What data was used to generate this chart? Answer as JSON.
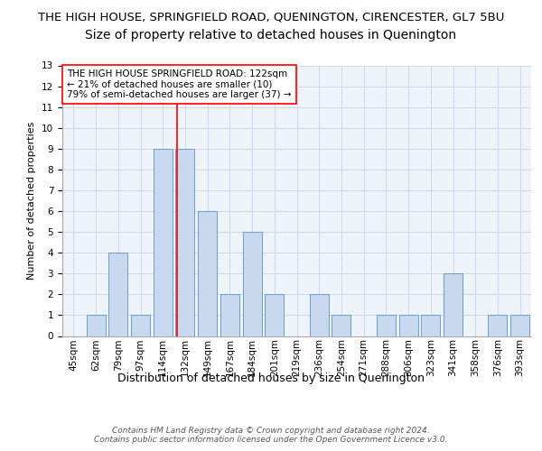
{
  "title": "THE HIGH HOUSE, SPRINGFIELD ROAD, QUENINGTON, CIRENCESTER, GL7 5BU",
  "subtitle": "Size of property relative to detached houses in Quenington",
  "xlabel": "Distribution of detached houses by size in Quenington",
  "ylabel": "Number of detached properties",
  "categories": [
    "45sqm",
    "62sqm",
    "79sqm",
    "97sqm",
    "114sqm",
    "132sqm",
    "149sqm",
    "167sqm",
    "184sqm",
    "201sqm",
    "219sqm",
    "236sqm",
    "254sqm",
    "271sqm",
    "288sqm",
    "306sqm",
    "323sqm",
    "341sqm",
    "358sqm",
    "376sqm",
    "393sqm"
  ],
  "values": [
    0,
    1,
    4,
    1,
    9,
    9,
    6,
    2,
    5,
    2,
    0,
    2,
    1,
    0,
    1,
    1,
    1,
    3,
    0,
    1,
    1
  ],
  "bar_color": "#c8d9ef",
  "bar_edge_color": "#6b9dc8",
  "ylim": [
    0,
    13
  ],
  "yticks": [
    0,
    1,
    2,
    3,
    4,
    5,
    6,
    7,
    8,
    9,
    10,
    11,
    12,
    13
  ],
  "red_line_x": 4.65,
  "annotation_text": "THE HIGH HOUSE SPRINGFIELD ROAD: 122sqm\n← 21% of detached houses are smaller (10)\n79% of semi-detached houses are larger (37) →",
  "footnote": "Contains HM Land Registry data © Crown copyright and database right 2024.\nContains public sector information licensed under the Open Government Licence v3.0.",
  "background_color": "#eef2f9",
  "grid_color": "#d0d8e8",
  "title_fontsize": 9.5,
  "subtitle_fontsize": 10,
  "ylabel_fontsize": 8,
  "xlabel_fontsize": 9,
  "tick_fontsize": 7.5,
  "annot_fontsize": 7.5,
  "footnote_fontsize": 6.5
}
